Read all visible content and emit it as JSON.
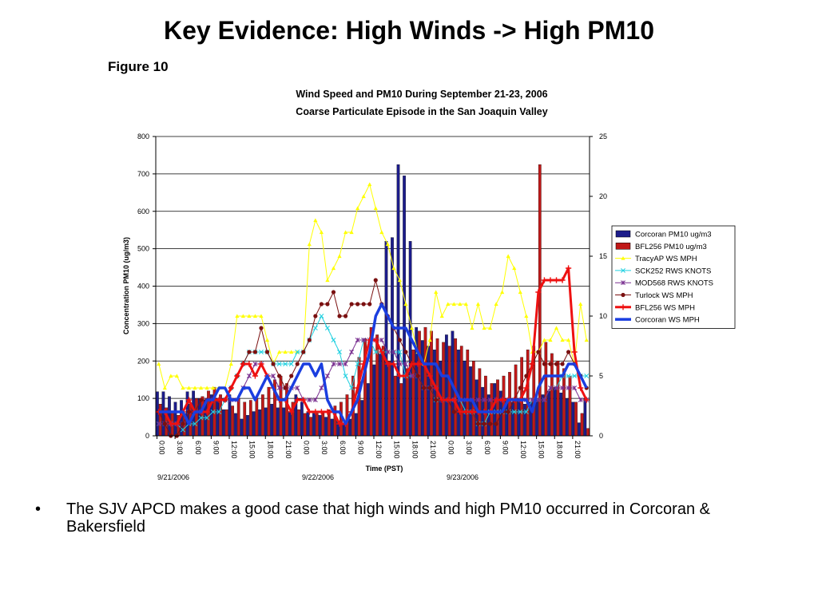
{
  "slide": {
    "title": "Key Evidence: High Winds -> High PM10",
    "figure_label": "Figure 10",
    "bullet_symbol": "•",
    "bullet_text": "The SJV APCD makes a good case that high winds and high PM10 occurred in Corcoran & Bakersfield"
  },
  "chart_data": {
    "type": "bar",
    "title": "Wind Speed and PM10 During September 21-23, 2006",
    "subtitle": "Coarse Particulate Episode in the San Joaquin Valley",
    "xlabel": "Time (PST)",
    "ylabel": "Concentration PM10 (ug/m3)",
    "ylim": [
      0,
      800
    ],
    "y2lim": [
      0,
      25
    ],
    "y_ticks": [
      "0",
      "100",
      "200",
      "300",
      "400",
      "500",
      "600",
      "700",
      "800"
    ],
    "y2_ticks": [
      "0",
      "5",
      "10",
      "15",
      "20",
      "25"
    ],
    "x_tick_labels": [
      "0:00",
      "3:00",
      "6:00",
      "9:00",
      "12:00",
      "15:00",
      "18:00",
      "21:00",
      "0:00",
      "3:00",
      "6:00",
      "9:00",
      "12:00",
      "15:00",
      "18:00",
      "21:00",
      "0:00",
      "3:00",
      "6:00",
      "9:00",
      "12:00",
      "15:00",
      "18:00",
      "21:00"
    ],
    "date_labels": [
      "9/21/2006",
      "9/22/2006",
      "9/23/2006"
    ],
    "grid": true,
    "legend_position": "right",
    "hours": 72,
    "bar_series": [
      {
        "name": "Corcoran PM10 ug/m3",
        "color": "#1c1c8a",
        "axis": "left",
        "values": [
          118,
          118,
          105,
          90,
          95,
          118,
          120,
          100,
          95,
          110,
          95,
          70,
          110,
          60,
          45,
          55,
          65,
          70,
          75,
          85,
          75,
          75,
          65,
          110,
          90,
          65,
          60,
          55,
          50,
          45,
          40,
          35,
          45,
          60,
          95,
          140,
          190,
          220,
          520,
          530,
          725,
          695,
          520,
          290,
          255,
          240,
          230,
          200,
          270,
          280,
          230,
          200,
          185,
          150,
          130,
          110,
          140,
          120,
          100,
          90,
          95,
          85,
          90,
          95,
          110,
          120,
          130,
          115,
          100,
          90,
          35,
          100
        ]
      },
      {
        "name": "BFL256 PM10 ug/m3",
        "color": "#c01818",
        "axis": "left",
        "values": [
          85,
          75,
          60,
          55,
          60,
          85,
          100,
          105,
          120,
          130,
          110,
          70,
          80,
          100,
          90,
          95,
          100,
          110,
          130,
          150,
          160,
          140,
          90,
          70,
          60,
          50,
          60,
          65,
          70,
          80,
          90,
          110,
          160,
          210,
          260,
          290,
          270,
          240,
          200,
          160,
          140,
          180,
          230,
          280,
          290,
          280,
          260,
          250,
          240,
          260,
          240,
          230,
          200,
          180,
          160,
          140,
          150,
          160,
          170,
          190,
          210,
          230,
          240,
          725,
          250,
          220,
          200,
          180,
          160,
          90,
          60,
          20
        ]
      }
    ],
    "line_series": [
      {
        "name": "TracyAP WS MPH",
        "color": "#ffff00",
        "marker": "triangle",
        "axis": "right",
        "width": 1,
        "values": [
          6,
          4,
          5,
          5,
          4,
          4,
          4,
          4,
          4,
          4,
          4,
          4,
          6,
          10,
          10,
          10,
          10,
          10,
          8,
          6,
          7,
          7,
          7,
          7,
          7,
          16,
          18,
          17,
          13,
          14,
          15,
          17,
          17,
          19,
          20,
          21,
          19,
          17,
          16,
          14,
          13,
          11,
          9,
          7,
          6,
          8,
          12,
          10,
          11,
          11,
          11,
          11,
          9,
          11,
          9,
          9,
          11,
          12,
          15,
          14,
          12,
          10,
          7,
          7,
          8,
          8,
          9,
          8,
          8,
          6,
          11,
          8
        ]
      },
      {
        "name": "SCK252 RWS KNOTS",
        "color": "#20d0e0",
        "marker": "x",
        "axis": "right",
        "width": 1,
        "values": [
          1,
          1,
          1,
          1,
          0.5,
          1,
          1,
          1.5,
          1.5,
          2,
          2,
          3,
          4,
          5,
          6,
          7,
          7,
          7,
          7,
          6,
          6,
          6,
          6,
          7,
          7,
          8,
          9,
          10,
          9,
          8,
          7,
          5,
          4,
          6,
          8,
          8,
          7,
          7,
          7,
          7,
          7,
          5,
          5,
          5,
          4,
          4,
          3,
          3,
          3,
          3,
          3,
          2,
          2,
          1,
          1,
          2,
          2,
          2,
          2,
          2,
          2,
          2,
          3,
          3,
          3,
          4,
          4,
          5,
          5,
          5,
          5,
          5
        ]
      },
      {
        "name": "MOD568 RWS KNOTS",
        "color": "#7a3090",
        "marker": "star",
        "axis": "right",
        "width": 1,
        "values": [
          1,
          1,
          1,
          1,
          1,
          2,
          2,
          2,
          3,
          3,
          3,
          3,
          3,
          3,
          4,
          5,
          6,
          6,
          5,
          5,
          4,
          4,
          4,
          4,
          3,
          3,
          3,
          4,
          5,
          6,
          6,
          6,
          7,
          8,
          8,
          8,
          8,
          8,
          7,
          7,
          6,
          6,
          5,
          5,
          4,
          4,
          4,
          3,
          3,
          3,
          3,
          3,
          3,
          3,
          3,
          3,
          3,
          3,
          3,
          3,
          3,
          3,
          3,
          3,
          3,
          4,
          4,
          4,
          4,
          4,
          3,
          3
        ]
      },
      {
        "name": "Turlock WS MPH",
        "color": "#7a1010",
        "marker": "circle",
        "axis": "right",
        "width": 1,
        "values": [
          2,
          1,
          0,
          0,
          1,
          2,
          2,
          3,
          3,
          3,
          3,
          3,
          4,
          5,
          6,
          7,
          7,
          9,
          7,
          6,
          5,
          4,
          5,
          6,
          7,
          8,
          10,
          11,
          11,
          12,
          10,
          10,
          11,
          11,
          11,
          11,
          13,
          11,
          10,
          9,
          8,
          7,
          6,
          5,
          4,
          4,
          3,
          3,
          3,
          2,
          2,
          2,
          2,
          1,
          1,
          1,
          1,
          2,
          2,
          3,
          4,
          5,
          6,
          7,
          6,
          6,
          6,
          6,
          7,
          6,
          5,
          4
        ]
      },
      {
        "name": "BFL256 WS MPH",
        "color": "#ee1111",
        "marker": "plus",
        "axis": "right",
        "width": 3,
        "values": [
          2,
          2,
          1,
          1,
          2,
          3,
          2,
          2,
          2,
          3,
          3,
          3,
          4,
          5,
          6,
          6,
          5,
          6,
          5,
          4,
          3,
          3,
          2,
          3,
          3,
          2,
          2,
          2,
          2,
          2,
          1,
          1,
          2,
          4,
          6,
          8,
          8,
          7,
          6,
          6,
          5,
          5,
          6,
          6,
          6,
          5,
          4,
          3,
          3,
          3,
          2,
          2,
          2,
          2,
          2,
          2,
          3,
          3,
          3,
          3,
          3,
          4,
          6,
          12,
          13,
          13,
          13,
          13,
          14,
          7,
          4,
          3
        ]
      },
      {
        "name": "Corcoran WS MPH",
        "color": "#1a3ee0",
        "marker": "none",
        "axis": "right",
        "width": 3.5,
        "values": [
          2,
          2,
          2,
          2,
          2,
          1,
          2,
          2,
          3,
          3,
          4,
          4,
          3,
          3,
          4,
          4,
          3,
          4,
          5,
          4,
          3,
          3,
          4,
          5,
          6,
          6,
          5,
          6,
          3,
          2,
          2,
          1,
          2,
          3,
          5,
          7,
          10,
          11,
          10,
          9,
          9,
          9,
          8,
          7,
          6,
          6,
          6,
          5,
          5,
          4,
          3,
          3,
          3,
          2,
          2,
          2,
          2,
          2,
          3,
          3,
          3,
          3,
          2,
          4,
          5,
          5,
          5,
          5,
          6,
          6,
          5,
          4
        ]
      }
    ]
  }
}
